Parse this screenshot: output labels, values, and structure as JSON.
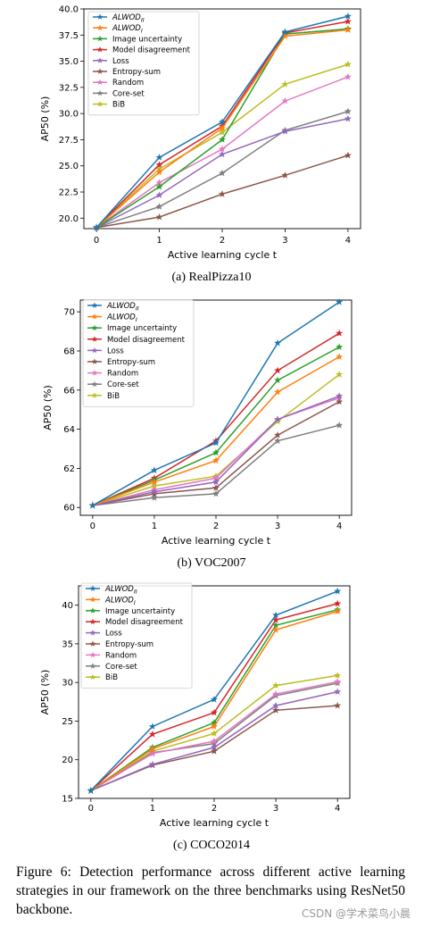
{
  "colors": {
    "ALWOD_II": "#1f77b4",
    "ALWOD_I": "#ff7f0e",
    "Image uncertainty": "#2ca02c",
    "Model disagreement": "#d62728",
    "Loss": "#9467bd",
    "Entropy-sum": "#8c564b",
    "Random": "#e377c2",
    "Core-set": "#7f7f7f",
    "BiB": "#bcbd22"
  },
  "chart_data": [
    {
      "type": "line",
      "caption": "(a) RealPizza10",
      "xlabel": "Active learning cycle t",
      "ylabel": "AP50 (%)",
      "x": [
        0,
        1,
        2,
        3,
        4
      ],
      "xlim": [
        -0.2,
        4.2
      ],
      "ylim": [
        19.0,
        40.0
      ],
      "yticks": [
        "20.0",
        "22.5",
        "25.0",
        "27.5",
        "30.0",
        "32.5",
        "35.0",
        "37.5",
        "40.0"
      ],
      "legend_position": "upper-left",
      "series": [
        {
          "name": "ALWOD",
          "sub": "II",
          "color_key": "ALWOD_II",
          "values": [
            19.1,
            25.8,
            29.2,
            37.8,
            39.3
          ]
        },
        {
          "name": "ALWOD",
          "sub": "I",
          "color_key": "ALWOD_I",
          "values": [
            19.1,
            24.4,
            28.6,
            37.4,
            38.0
          ]
        },
        {
          "name": "Image uncertainty",
          "color_key": "Image uncertainty",
          "values": [
            19.1,
            23.0,
            27.5,
            37.6,
            38.1
          ]
        },
        {
          "name": "Model disagreement",
          "color_key": "Model disagreement",
          "values": [
            19.1,
            25.1,
            28.8,
            37.7,
            38.8
          ]
        },
        {
          "name": "Loss",
          "color_key": "Loss",
          "values": [
            19.1,
            22.2,
            26.1,
            28.3,
            29.5
          ]
        },
        {
          "name": "Entropy-sum",
          "color_key": "Entropy-sum",
          "values": [
            19.1,
            20.1,
            22.3,
            24.1,
            26.0
          ]
        },
        {
          "name": "Random",
          "color_key": "Random",
          "values": [
            19.1,
            23.4,
            26.6,
            31.2,
            33.5
          ]
        },
        {
          "name": "Core-set",
          "color_key": "Core-set",
          "values": [
            19.1,
            21.1,
            24.3,
            28.4,
            30.2
          ]
        },
        {
          "name": "BiB",
          "color_key": "BiB",
          "values": [
            19.1,
            24.7,
            28.2,
            32.8,
            34.7
          ]
        }
      ]
    },
    {
      "type": "line",
      "caption": "(b) VOC2007",
      "xlabel": "Active learning cycle t",
      "ylabel": "AP50 (%)",
      "x": [
        0,
        1,
        2,
        3,
        4
      ],
      "xlim": [
        -0.2,
        4.2
      ],
      "ylim": [
        59.6,
        70.6
      ],
      "yticks": [
        "60",
        "62",
        "64",
        "66",
        "68",
        "70"
      ],
      "legend_position": "upper-left",
      "series": [
        {
          "name": "ALWOD",
          "sub": "II",
          "color_key": "ALWOD_II",
          "values": [
            60.1,
            61.9,
            63.3,
            68.4,
            70.5
          ]
        },
        {
          "name": "ALWOD",
          "sub": "I",
          "color_key": "ALWOD_I",
          "values": [
            60.1,
            61.3,
            62.4,
            65.9,
            67.7
          ]
        },
        {
          "name": "Image uncertainty",
          "color_key": "Image uncertainty",
          "values": [
            60.1,
            61.4,
            62.8,
            66.5,
            68.2
          ]
        },
        {
          "name": "Model disagreement",
          "color_key": "Model disagreement",
          "values": [
            60.1,
            61.5,
            63.4,
            67.0,
            68.9
          ]
        },
        {
          "name": "Loss",
          "color_key": "Loss",
          "values": [
            60.1,
            60.8,
            61.3,
            64.5,
            65.7
          ]
        },
        {
          "name": "Entropy-sum",
          "color_key": "Entropy-sum",
          "values": [
            60.1,
            60.7,
            61.0,
            63.7,
            65.4
          ]
        },
        {
          "name": "Random",
          "color_key": "Random",
          "values": [
            60.1,
            60.9,
            61.5,
            64.5,
            65.6
          ]
        },
        {
          "name": "Core-set",
          "color_key": "Core-set",
          "values": [
            60.1,
            60.5,
            60.7,
            63.4,
            64.2
          ]
        },
        {
          "name": "BiB",
          "color_key": "BiB",
          "values": [
            60.1,
            61.1,
            61.6,
            64.4,
            66.8
          ]
        }
      ]
    },
    {
      "type": "line",
      "caption": "(c) COCO2014",
      "xlabel": "Active learning cycle t",
      "ylabel": "AP50 (%)",
      "x": [
        0,
        1,
        2,
        3,
        4
      ],
      "xlim": [
        -0.2,
        4.2
      ],
      "ylim": [
        15.0,
        42.5
      ],
      "yticks": [
        "15",
        "20",
        "25",
        "30",
        "35",
        "40"
      ],
      "legend_position": "upper-left",
      "series": [
        {
          "name": "ALWOD",
          "sub": "II",
          "color_key": "ALWOD_II",
          "values": [
            16.0,
            24.3,
            27.8,
            38.7,
            41.8
          ]
        },
        {
          "name": "ALWOD",
          "sub": "I",
          "color_key": "ALWOD_I",
          "values": [
            16.0,
            21.4,
            24.3,
            36.8,
            39.2
          ]
        },
        {
          "name": "Image uncertainty",
          "color_key": "Image uncertainty",
          "values": [
            16.0,
            21.6,
            24.8,
            37.4,
            39.4
          ]
        },
        {
          "name": "Model disagreement",
          "color_key": "Model disagreement",
          "values": [
            16.0,
            23.3,
            26.1,
            38.1,
            40.2
          ]
        },
        {
          "name": "Loss",
          "color_key": "Loss",
          "values": [
            16.0,
            19.4,
            21.6,
            27.0,
            28.8
          ]
        },
        {
          "name": "Entropy-sum",
          "color_key": "Entropy-sum",
          "values": [
            16.0,
            19.3,
            21.1,
            26.4,
            27.0
          ]
        },
        {
          "name": "Random",
          "color_key": "Random",
          "values": [
            16.0,
            20.8,
            22.4,
            28.5,
            30.1
          ]
        },
        {
          "name": "Core-set",
          "color_key": "Core-set",
          "values": [
            16.0,
            20.9,
            22.1,
            28.3,
            29.9
          ]
        },
        {
          "name": "BiB",
          "color_key": "BiB",
          "values": [
            16.0,
            21.1,
            23.4,
            29.6,
            30.9
          ]
        }
      ]
    }
  ],
  "figure_caption": "Figure 6:  Detection performance across different active learning strategies in our framework on the three benchmarks using ResNet50 backbone.",
  "watermark": "CSDN @学术菜鸟小晨"
}
